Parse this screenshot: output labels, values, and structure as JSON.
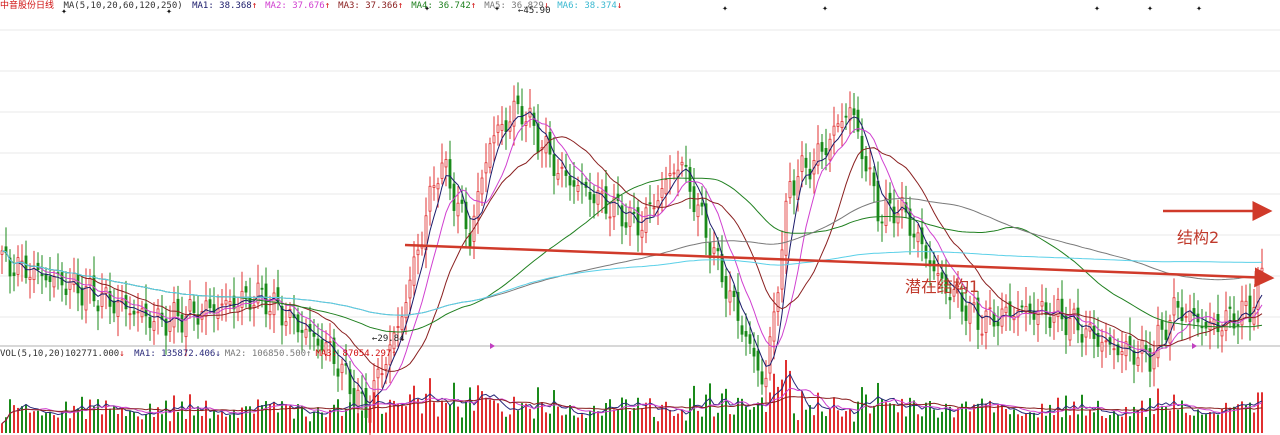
{
  "header": {
    "stock_name": "中音股份",
    "period": "日线",
    "ma_params": "MA(5,10,20,60,120,250)",
    "ma_values": [
      {
        "label": "MA1:",
        "value": "38.368",
        "arrow": "↑"
      },
      {
        "label": "MA2:",
        "value": "37.676",
        "arrow": "↑"
      },
      {
        "label": "MA3:",
        "value": "37.366",
        "arrow": "↑"
      },
      {
        "label": "MA4:",
        "value": "36.742",
        "arrow": "↑"
      },
      {
        "label": "MA5:",
        "value": "36.829",
        "arrow": "↓"
      },
      {
        "label": "MA6:",
        "value": "38.374",
        "arrow": "↓"
      }
    ]
  },
  "volume_header": {
    "params": "VOL(5,10,20)",
    "value": "102771.000",
    "arrow": "↓",
    "mas": [
      {
        "label": "MA1:",
        "value": "135872.406",
        "arrow": "↓"
      },
      {
        "label": "MA2:",
        "value": "106850.500",
        "arrow": "↑"
      },
      {
        "label": "MA3:",
        "value": "87054.297",
        "arrow": "↑"
      }
    ]
  },
  "chart_data": {
    "type": "candlestick",
    "price_high_label": "45.90",
    "price_low_label": "29.84",
    "price_range": [
      29.2,
      47.6
    ],
    "annotations": [
      {
        "text": "潜在结构1"
      },
      {
        "text": "结构2"
      }
    ],
    "colors": {
      "up": "#e03030",
      "down": "#1a8a1a",
      "ma5": "#1a1a6a",
      "ma10": "#d040d0",
      "ma20": "#8a2020",
      "ma60": "#208020",
      "ma120": "#7a7a7a",
      "ma250": "#5ad0e8",
      "arrow": "#d03a2a",
      "grid": "#e8e8e8",
      "marker": "#c040c0"
    }
  }
}
